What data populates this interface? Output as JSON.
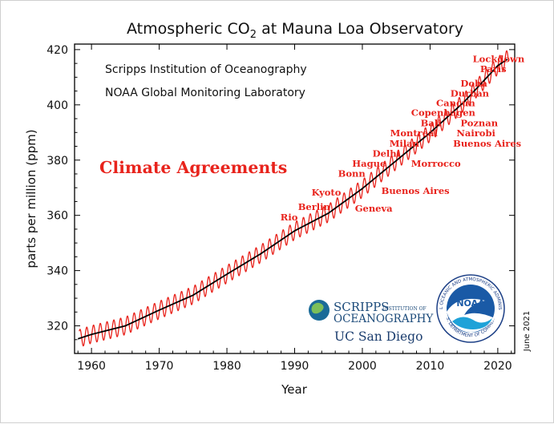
{
  "chart_data": {
    "type": "line",
    "title_main": "Atmospheric CO",
    "title_sub": "2",
    "title_rest": " at Mauna Loa Observatory",
    "xlabel": "Year",
    "ylabel": "parts per million (ppm)",
    "xlim": [
      1957.5,
      2022.5
    ],
    "ylim": [
      310,
      422
    ],
    "xticks": [
      1960,
      1970,
      1980,
      1990,
      2000,
      2010,
      2020
    ],
    "yticks": [
      320,
      340,
      360,
      380,
      400,
      420
    ],
    "x_tick_labels": [
      "1960",
      "1970",
      "1980",
      "1990",
      "2000",
      "2010",
      "2020"
    ],
    "y_tick_labels": [
      "320",
      "340",
      "360",
      "380",
      "400",
      "420"
    ],
    "credit_lines": [
      "Scripps Institution of Oceanography",
      "NOAA Global Monitoring Laboratory"
    ],
    "date_note": "June 2021",
    "headline": "Climate Agreements",
    "series": [
      {
        "role": "monthly-seasonal",
        "color": "#e8231c",
        "seasonal_amplitude_ppm": 3.2,
        "x": [
          1958,
          1960,
          1965,
          1970,
          1975,
          1980,
          1985,
          1990,
          1995,
          2000,
          2005,
          2010,
          2015,
          2020,
          2021.4
        ],
        "y": [
          315.3,
          316.9,
          320.0,
          325.7,
          331.1,
          338.7,
          346.1,
          354.4,
          360.8,
          369.7,
          379.8,
          389.9,
          401.0,
          414.2,
          416.5
        ]
      },
      {
        "role": "seasonally-corrected-trend",
        "color": "#000000",
        "x": [
          1958,
          1960,
          1965,
          1970,
          1975,
          1980,
          1985,
          1990,
          1995,
          2000,
          2005,
          2010,
          2015,
          2020,
          2021.4
        ],
        "y": [
          315.3,
          316.9,
          320.0,
          325.7,
          331.1,
          338.7,
          346.1,
          354.4,
          360.8,
          369.7,
          379.8,
          389.9,
          401.0,
          414.2,
          416.5
        ]
      }
    ],
    "annotations": [
      {
        "text": "Lockdown",
        "x": 2016.3,
        "y": 415.5
      },
      {
        "text": "Paris",
        "x": 2017.4,
        "y": 411.8
      },
      {
        "text": "Doha",
        "x": 2014.5,
        "y": 406.6
      },
      {
        "text": "Durban",
        "x": 2013.0,
        "y": 403.0
      },
      {
        "text": "Cancun",
        "x": 2010.9,
        "y": 399.5
      },
      {
        "text": "Copenhagen",
        "x": 2007.2,
        "y": 396.0
      },
      {
        "text": "Bali",
        "x": 2008.6,
        "y": 392.3
      },
      {
        "text": "Poznan",
        "x": 2014.5,
        "y": 392.3
      },
      {
        "text": "Montreal",
        "x": 2004.1,
        "y": 388.6
      },
      {
        "text": "Nairobi",
        "x": 2013.9,
        "y": 388.6
      },
      {
        "text": "Milan",
        "x": 2004.0,
        "y": 384.8
      },
      {
        "text": "Buenos Aires",
        "x": 2013.4,
        "y": 384.8
      },
      {
        "text": "Delhi",
        "x": 2001.5,
        "y": 381.3
      },
      {
        "text": "Hague",
        "x": 1998.5,
        "y": 377.6
      },
      {
        "text": "Morrocco",
        "x": 2007.2,
        "y": 377.6
      },
      {
        "text": "Bonn",
        "x": 1996.4,
        "y": 374.0
      },
      {
        "text": "Kyoto",
        "x": 1992.5,
        "y": 367.2
      },
      {
        "text": "Buenos Aires",
        "x": 2002.8,
        "y": 367.7
      },
      {
        "text": "Berlin",
        "x": 1990.5,
        "y": 361.9
      },
      {
        "text": "Geneva",
        "x": 1998.9,
        "y": 361.4
      },
      {
        "text": "Rio",
        "x": 1987.9,
        "y": 358.1
      }
    ]
  },
  "logos": {
    "scripps_line1": "SCRIPPS",
    "scripps_small": "INSTITUTION OF",
    "scripps_line2": "OCEANOGRAPHY",
    "ucsd": "UC San Diego",
    "noaa": "NOAA",
    "noaa_ring_top": "NATIONAL OCEANIC AND ATMOSPHERIC ADMINISTRATION",
    "noaa_ring_bottom": "U.S. DEPARTMENT OF COMMERCE"
  }
}
